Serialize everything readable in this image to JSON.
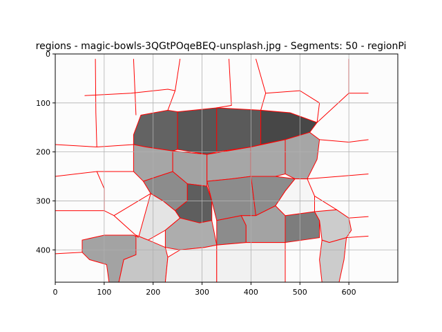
{
  "chart_data": {
    "type": "image",
    "title": "regions - magic-bowls-3QGtPOqeBEQ-unsplash.jpg - Segments: 50 - regionPi",
    "xlabel": "",
    "ylabel": "",
    "xlim": [
      0,
      700
    ],
    "ylim": [
      466,
      0
    ],
    "grid": true,
    "x_ticks": [
      0,
      100,
      200,
      300,
      400,
      500,
      600
    ],
    "y_ticks": [
      0,
      100,
      200,
      300,
      400
    ],
    "x_tick_labels": [
      "0",
      "100",
      "200",
      "300",
      "400",
      "500",
      "600"
    ],
    "y_tick_labels": [
      "0",
      "100",
      "200",
      "300",
      "400"
    ],
    "boundary_color": "#ff0000",
    "regions": [
      {
        "fill": "#636363",
        "points": [
          [
            160,
            165
          ],
          [
            175,
            125
          ],
          [
            230,
            115
          ],
          [
            250,
            118
          ],
          [
            250,
            195
          ],
          [
            240,
            198
          ],
          [
            185,
            190
          ],
          [
            160,
            185
          ]
        ]
      },
      {
        "fill": "#575757",
        "points": [
          [
            250,
            118
          ],
          [
            330,
            110
          ],
          [
            330,
            200
          ],
          [
            310,
            205
          ],
          [
            250,
            195
          ]
        ]
      },
      {
        "fill": "#5a5a5a",
        "points": [
          [
            330,
            110
          ],
          [
            420,
            115
          ],
          [
            420,
            185
          ],
          [
            400,
            190
          ],
          [
            330,
            200
          ]
        ]
      },
      {
        "fill": "#474747",
        "points": [
          [
            420,
            115
          ],
          [
            480,
            120
          ],
          [
            535,
            140
          ],
          [
            520,
            160
          ],
          [
            470,
            175
          ],
          [
            420,
            185
          ]
        ]
      },
      {
        "fill": "#a6a6a6",
        "points": [
          [
            160,
            185
          ],
          [
            185,
            190
          ],
          [
            240,
            198
          ],
          [
            240,
            240
          ],
          [
            210,
            250
          ],
          [
            180,
            260
          ],
          [
            160,
            240
          ]
        ]
      },
      {
        "fill": "#a3a3a3",
        "points": [
          [
            240,
            198
          ],
          [
            310,
            205
          ],
          [
            310,
            270
          ],
          [
            270,
            265
          ],
          [
            240,
            240
          ]
        ]
      },
      {
        "fill": "#a6a6a6",
        "points": [
          [
            310,
            205
          ],
          [
            400,
            190
          ],
          [
            400,
            250
          ],
          [
            360,
            255
          ],
          [
            310,
            260
          ]
        ]
      },
      {
        "fill": "#a8a8a8",
        "points": [
          [
            400,
            190
          ],
          [
            470,
            175
          ],
          [
            470,
            245
          ],
          [
            450,
            250
          ],
          [
            400,
            250
          ]
        ]
      },
      {
        "fill": "#a6a6a6",
        "points": [
          [
            470,
            175
          ],
          [
            520,
            160
          ],
          [
            540,
            175
          ],
          [
            535,
            215
          ],
          [
            515,
            255
          ],
          [
            490,
            255
          ],
          [
            470,
            245
          ]
        ]
      },
      {
        "fill": "#8c8c8c",
        "points": [
          [
            180,
            260
          ],
          [
            210,
            250
          ],
          [
            240,
            240
          ],
          [
            270,
            265
          ],
          [
            270,
            300
          ],
          [
            245,
            320
          ],
          [
            220,
            300
          ],
          [
            195,
            285
          ]
        ]
      },
      {
        "fill": "#5e5e5e",
        "points": [
          [
            270,
            265
          ],
          [
            310,
            270
          ],
          [
            320,
            300
          ],
          [
            320,
            340
          ],
          [
            295,
            345
          ],
          [
            255,
            335
          ],
          [
            245,
            320
          ],
          [
            270,
            300
          ]
        ]
      },
      {
        "fill": "#8c8c8c",
        "points": [
          [
            310,
            260
          ],
          [
            360,
            255
          ],
          [
            400,
            250
          ],
          [
            410,
            330
          ],
          [
            380,
            330
          ],
          [
            330,
            340
          ],
          [
            320,
            300
          ]
        ]
      },
      {
        "fill": "#8c8c8c",
        "points": [
          [
            400,
            250
          ],
          [
            450,
            250
          ],
          [
            490,
            255
          ],
          [
            470,
            280
          ],
          [
            450,
            310
          ],
          [
            410,
            330
          ]
        ]
      },
      {
        "fill": "#e4e4e4",
        "points": [
          [
            195,
            285
          ],
          [
            220,
            300
          ],
          [
            245,
            320
          ],
          [
            255,
            335
          ],
          [
            225,
            360
          ],
          [
            190,
            380
          ],
          [
            170,
            375
          ]
        ]
      },
      {
        "fill": "#adadad",
        "points": [
          [
            225,
            360
          ],
          [
            255,
            335
          ],
          [
            295,
            345
          ],
          [
            320,
            340
          ],
          [
            330,
            390
          ],
          [
            305,
            395
          ],
          [
            255,
            400
          ],
          [
            225,
            395
          ]
        ]
      },
      {
        "fill": "#8c8c8c",
        "points": [
          [
            330,
            340
          ],
          [
            380,
            330
          ],
          [
            390,
            350
          ],
          [
            390,
            385
          ],
          [
            330,
            390
          ]
        ]
      },
      {
        "fill": "#a3a3a3",
        "points": [
          [
            380,
            330
          ],
          [
            410,
            330
          ],
          [
            450,
            310
          ],
          [
            470,
            330
          ],
          [
            470,
            385
          ],
          [
            390,
            385
          ],
          [
            390,
            350
          ]
        ]
      },
      {
        "fill": "#7d7d7d",
        "points": [
          [
            470,
            330
          ],
          [
            530,
            322
          ],
          [
            540,
            340
          ],
          [
            540,
            375
          ],
          [
            470,
            385
          ]
        ]
      },
      {
        "fill": "#cccccc",
        "points": [
          [
            530,
            322
          ],
          [
            575,
            318
          ],
          [
            600,
            335
          ],
          [
            605,
            360
          ],
          [
            595,
            375
          ],
          [
            560,
            385
          ],
          [
            545,
            380
          ],
          [
            540,
            340
          ]
        ]
      },
      {
        "fill": "#a3a3a3",
        "points": [
          [
            55,
            380
          ],
          [
            100,
            370
          ],
          [
            160,
            370
          ],
          [
            170,
            375
          ],
          [
            165,
            410
          ],
          [
            140,
            420
          ],
          [
            130,
            466
          ],
          [
            110,
            466
          ],
          [
            105,
            430
          ],
          [
            70,
            420
          ],
          [
            55,
            405
          ]
        ]
      },
      {
        "fill": "#c6c6c6",
        "points": [
          [
            165,
            370
          ],
          [
            190,
            380
          ],
          [
            225,
            395
          ],
          [
            230,
            415
          ],
          [
            225,
            466
          ],
          [
            130,
            466
          ],
          [
            140,
            420
          ],
          [
            165,
            410
          ]
        ]
      },
      {
        "fill": "#f1f1f1",
        "points": [
          [
            230,
            415
          ],
          [
            255,
            400
          ],
          [
            305,
            395
          ],
          [
            330,
            390
          ],
          [
            330,
            466
          ],
          [
            225,
            466
          ]
        ]
      },
      {
        "fill": "#f1f1f1",
        "points": [
          [
            330,
            390
          ],
          [
            390,
            385
          ],
          [
            470,
            385
          ],
          [
            470,
            466
          ],
          [
            330,
            466
          ]
        ]
      },
      {
        "fill": "#cccccc",
        "points": [
          [
            545,
            380
          ],
          [
            560,
            385
          ],
          [
            595,
            375
          ],
          [
            590,
            420
          ],
          [
            580,
            466
          ],
          [
            545,
            466
          ],
          [
            540,
            420
          ]
        ]
      },
      {
        "fill": "#f6f6f6",
        "points": [
          [
            450,
            310
          ],
          [
            470,
            280
          ],
          [
            490,
            255
          ],
          [
            515,
            255
          ],
          [
            530,
            290
          ],
          [
            530,
            322
          ],
          [
            470,
            330
          ]
        ]
      }
    ],
    "boundary_lines": [
      [
        [
          82,
          10
        ],
        [
          83,
          120
        ],
        [
          85,
          190
        ]
      ],
      [
        [
          160,
          10
        ],
        [
          165,
          125
        ]
      ],
      [
        [
          255,
          10
        ],
        [
          245,
          75
        ],
        [
          230,
          115
        ]
      ],
      [
        [
          355,
          10
        ],
        [
          360,
          105
        ],
        [
          330,
          110
        ]
      ],
      [
        [
          410,
          10
        ],
        [
          430,
          80
        ],
        [
          420,
          115
        ]
      ],
      [
        [
          600,
          10
        ],
        [
          600,
          80
        ],
        [
          640,
          80
        ]
      ],
      [
        [
          600,
          80
        ],
        [
          535,
          140
        ]
      ],
      [
        [
          60,
          85
        ],
        [
          155,
          80
        ],
        [
          230,
          72
        ],
        [
          245,
          75
        ]
      ],
      [
        [
          430,
          80
        ],
        [
          500,
          75
        ],
        [
          540,
          100
        ],
        [
          535,
          140
        ]
      ],
      [
        [
          0,
          185
        ],
        [
          85,
          190
        ],
        [
          160,
          185
        ]
      ],
      [
        [
          540,
          175
        ],
        [
          600,
          180
        ],
        [
          640,
          175
        ]
      ],
      [
        [
          0,
          250
        ],
        [
          85,
          240
        ],
        [
          160,
          240
        ]
      ],
      [
        [
          85,
          240
        ],
        [
          100,
          275
        ],
        [
          100,
          320
        ]
      ],
      [
        [
          515,
          255
        ],
        [
          580,
          250
        ],
        [
          640,
          245
        ]
      ],
      [
        [
          0,
          320
        ],
        [
          100,
          320
        ],
        [
          120,
          330
        ],
        [
          170,
          375
        ]
      ],
      [
        [
          120,
          330
        ],
        [
          195,
          285
        ]
      ],
      [
        [
          530,
          290
        ],
        [
          575,
          318
        ]
      ],
      [
        [
          600,
          335
        ],
        [
          640,
          332
        ]
      ],
      [
        [
          0,
          408
        ],
        [
          55,
          405
        ]
      ],
      [
        [
          595,
          375
        ],
        [
          640,
          372
        ]
      ]
    ]
  }
}
